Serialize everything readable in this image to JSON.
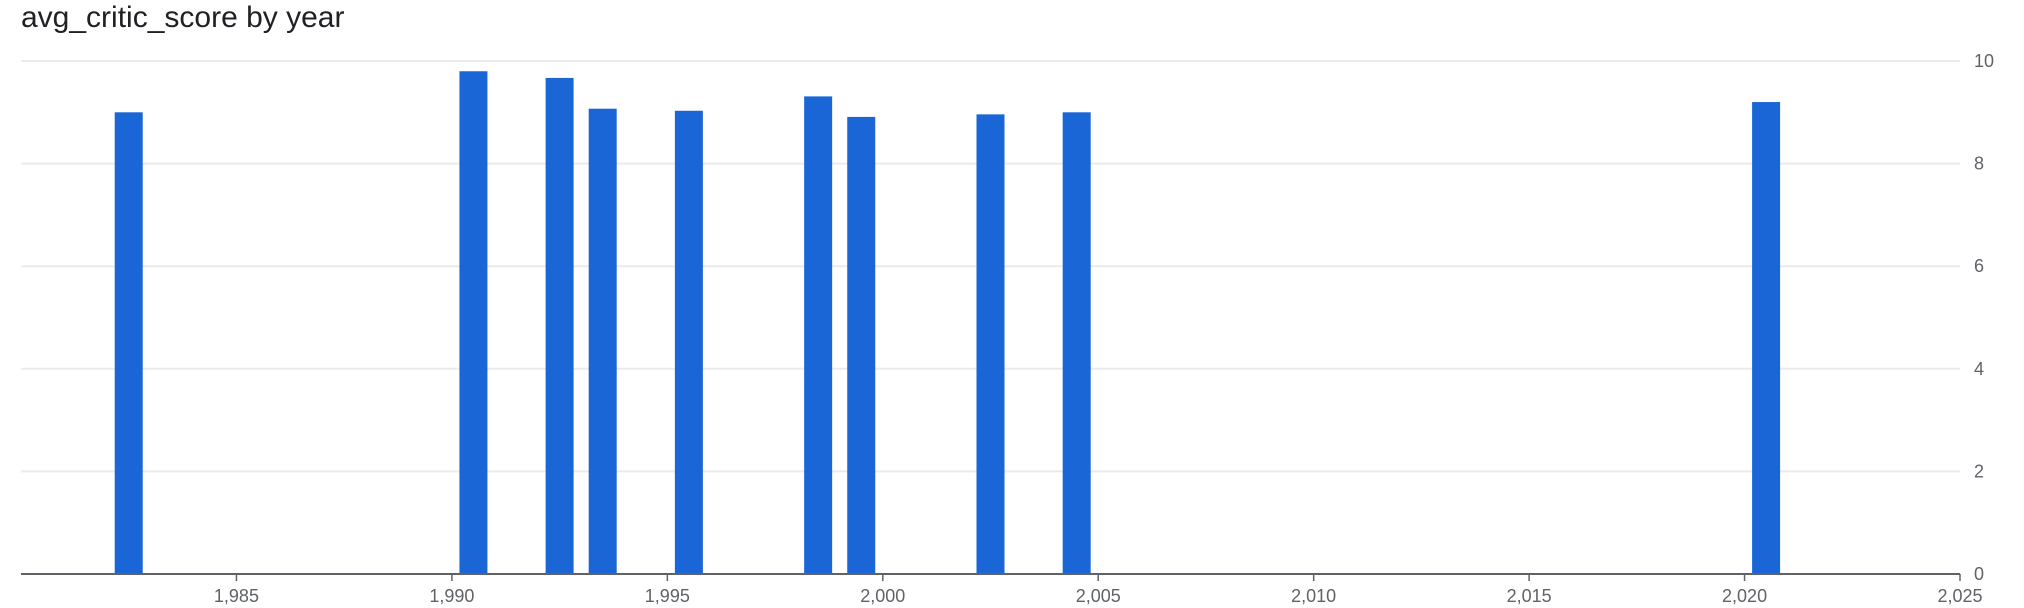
{
  "chart_data": {
    "type": "bar",
    "title": "avg_critic_score by year",
    "xlabel": "",
    "ylabel": "",
    "x": [
      1982.5,
      1990.5,
      1992.5,
      1993.5,
      1995.5,
      1998.5,
      1999.5,
      2002.5,
      2004.5,
      2020.5
    ],
    "values": [
      9.0,
      9.8,
      9.67,
      9.07,
      9.03,
      9.31,
      8.91,
      8.96,
      9.0,
      9.2
    ],
    "xlim": [
      1980,
      2025
    ],
    "ylim": [
      0,
      10
    ],
    "x_ticks": [
      1985,
      1990,
      1995,
      2000,
      2005,
      2010,
      2015,
      2020,
      2025
    ],
    "x_tick_labels": [
      "1,985",
      "1,990",
      "1,995",
      "2,000",
      "2,005",
      "2,010",
      "2,015",
      "2,020",
      "2,025"
    ],
    "y_ticks": [
      0,
      2,
      4,
      6,
      8,
      10
    ],
    "y_tick_labels": [
      "0",
      "2",
      "4",
      "6",
      "8",
      "10"
    ],
    "y_axis_side": "right",
    "grid": true,
    "bar_color": "#1a66d6",
    "grid_color": "#ebebeb",
    "axis_color": "#5f6368"
  }
}
